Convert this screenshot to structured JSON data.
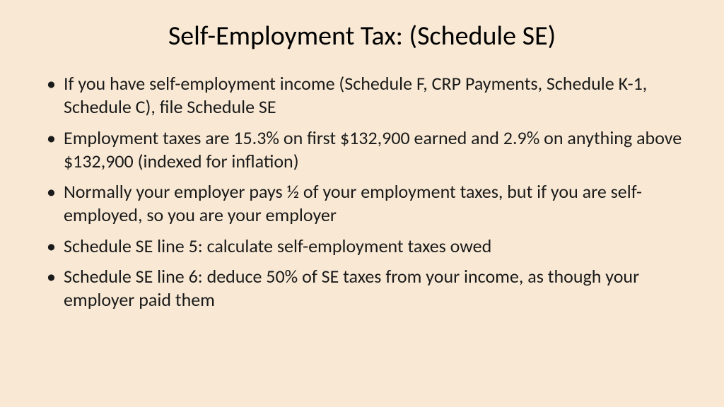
{
  "slide": {
    "background_color": "#f9e9d4",
    "text_color": "#1a1a1a",
    "title": "Self-Employment Tax: (Schedule SE)",
    "title_fontsize": 38,
    "bullet_fontsize": 26,
    "bullets": [
      "If you have self-employment income (Schedule F, CRP Payments,  Schedule K-1, Schedule C), file Schedule SE",
      "Employment taxes are 15.3% on first $132,900 earned and 2.9% on anything above $132,900 (indexed for inflation)",
      "Normally your employer pays ½ of your employment taxes, but if you are self-employed, so you are your employer",
      "Schedule SE line 5: calculate self-employment taxes owed",
      "Schedule SE line 6: deduce 50% of SE taxes from your income, as though your employer paid them"
    ]
  }
}
